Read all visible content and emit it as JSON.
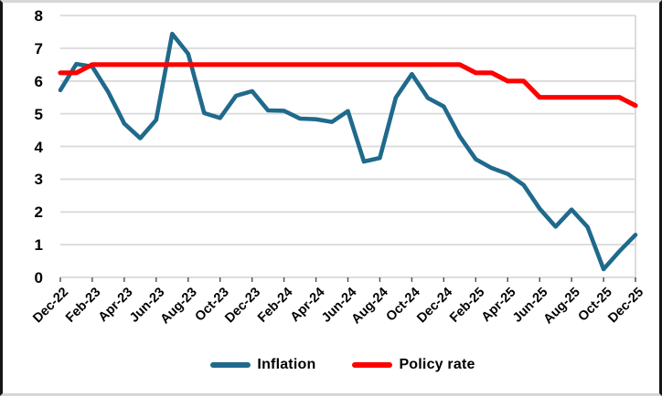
{
  "chart_data": {
    "type": "line",
    "title": "",
    "xlabel": "",
    "ylabel": "",
    "ylim": [
      0,
      8
    ],
    "y_ticks": [
      0,
      1,
      2,
      3,
      4,
      5,
      6,
      7,
      8
    ],
    "grid": "horizontal",
    "gridline_color": "#D9D9D9",
    "legend_position": "bottom",
    "x": [
      "Dec-22",
      "Jan-23",
      "Feb-23",
      "Mar-23",
      "Apr-23",
      "May-23",
      "Jun-23",
      "Jul-23",
      "Aug-23",
      "Sep-23",
      "Oct-23",
      "Nov-23",
      "Dec-23",
      "Jan-24",
      "Feb-24",
      "Mar-24",
      "Apr-24",
      "May-24",
      "Jun-24",
      "Jul-24",
      "Aug-24",
      "Sep-24",
      "Oct-24",
      "Nov-24",
      "Dec-24",
      "Jan-25",
      "Feb-25",
      "Mar-25",
      "Apr-25",
      "May-25",
      "Jun-25",
      "Jul-25",
      "Aug-25",
      "Sep-25",
      "Oct-25",
      "Nov-25",
      "Dec-25"
    ],
    "x_tick_labels": [
      "Dec-22",
      "Feb-23",
      "Apr-23",
      "Jun-23",
      "Aug-23",
      "Oct-23",
      "Dec-23",
      "Feb-24",
      "Apr-24",
      "Jun-24",
      "Aug-24",
      "Oct-24",
      "Dec-24",
      "Feb-25",
      "Apr-25",
      "Jun-25",
      "Aug-25",
      "Oct-25",
      "Dec-25"
    ],
    "series": [
      {
        "name": "Inflation",
        "color": "#1F6A8C",
        "values": [
          5.72,
          6.52,
          6.44,
          5.66,
          4.7,
          4.25,
          4.81,
          7.44,
          6.83,
          5.02,
          4.87,
          5.55,
          5.69,
          5.1,
          5.09,
          4.85,
          4.83,
          4.75,
          5.08,
          3.54,
          3.65,
          5.49,
          6.21,
          5.48,
          5.22,
          4.31,
          3.61,
          3.34,
          3.16,
          2.82,
          2.1,
          1.55,
          2.07,
          1.54,
          0.25,
          0.8,
          1.3
        ]
      },
      {
        "name": "Policy rate",
        "color": "#FF0000",
        "values": [
          6.25,
          6.25,
          6.5,
          6.5,
          6.5,
          6.5,
          6.5,
          6.5,
          6.5,
          6.5,
          6.5,
          6.5,
          6.5,
          6.5,
          6.5,
          6.5,
          6.5,
          6.5,
          6.5,
          6.5,
          6.5,
          6.5,
          6.5,
          6.5,
          6.5,
          6.5,
          6.25,
          6.25,
          6.0,
          6.0,
          5.5,
          5.5,
          5.5,
          5.5,
          5.5,
          5.5,
          5.25
        ]
      }
    ]
  }
}
